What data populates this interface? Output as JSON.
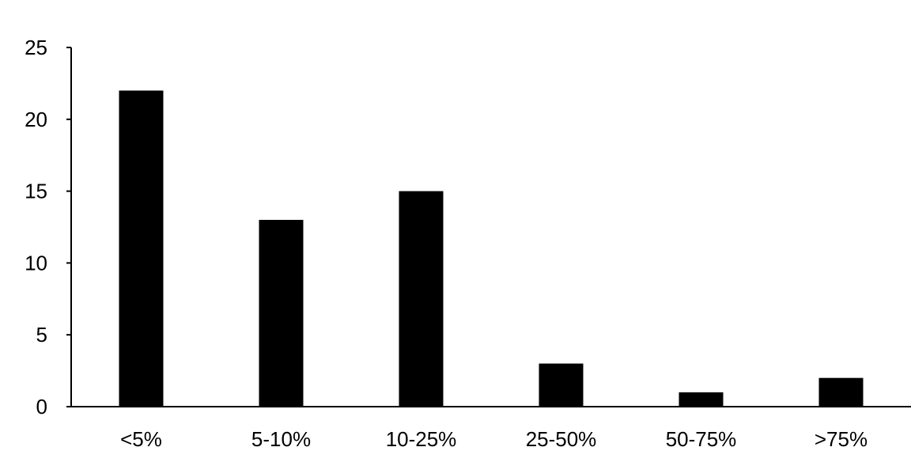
{
  "chart_data": {
    "type": "bar",
    "title": "",
    "xlabel": "",
    "ylabel": "",
    "categories": [
      "<5%",
      "5-10%",
      "10-25%",
      "25-50%",
      "50-75%",
      ">75%"
    ],
    "values": [
      22,
      13,
      15,
      3,
      1,
      2
    ],
    "ylim": [
      0,
      25
    ],
    "yticks": [
      0,
      5,
      10,
      15,
      20,
      25
    ],
    "grid": false,
    "legend": "none",
    "bar_color": "#000000"
  }
}
